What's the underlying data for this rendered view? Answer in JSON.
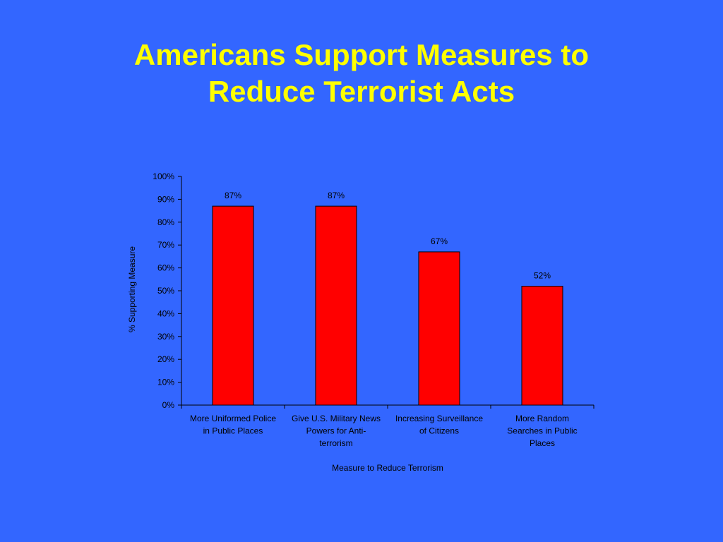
{
  "slide": {
    "title_line1": "Americans Support Measures to",
    "title_line2": "Reduce Terrorist Acts"
  },
  "colors": {
    "background": "#3366ff",
    "title": "#ffff00",
    "bar": "#ff0000",
    "axis": "#000000"
  },
  "chart_data": {
    "type": "bar",
    "title": "Americans Support Measures to Reduce Terrorist Acts",
    "xlabel": "Measure to Reduce Terrorism",
    "ylabel": "% Supporting Measure",
    "ylim": [
      0,
      100
    ],
    "y_ticks": [
      "0%",
      "10%",
      "20%",
      "30%",
      "40%",
      "50%",
      "60%",
      "70%",
      "80%",
      "90%",
      "100%"
    ],
    "categories": [
      [
        "More Uniformed Police",
        "in Public Places"
      ],
      [
        "Give U.S. Military News",
        "Powers for Anti-",
        "terrorism"
      ],
      [
        "Increasing Surveillance",
        "of Citizens"
      ],
      [
        "More Random",
        "Searches in Public",
        "Places"
      ]
    ],
    "values": [
      87,
      87,
      67,
      52
    ],
    "data_labels": [
      "87%",
      "87%",
      "67%",
      "52%"
    ],
    "grid": false,
    "legend": "none"
  }
}
